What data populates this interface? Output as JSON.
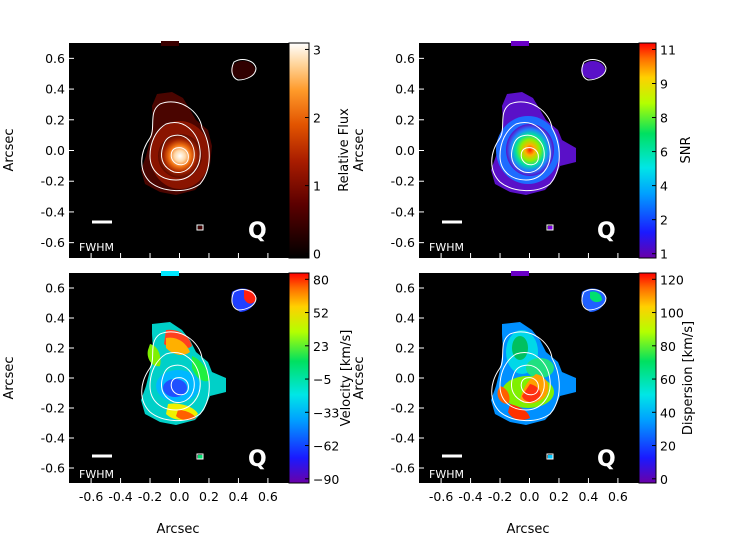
{
  "chart_data": [
    {
      "type": "heatmap",
      "quantity": "flux",
      "cbar_label": "Relative Flux",
      "cbar_ticks": [
        "0",
        "1",
        "2",
        "3"
      ],
      "cbar_range": [
        0,
        3
      ],
      "ylabel": "Arcsec",
      "xlabel": "",
      "beam_label": "FWHM",
      "object_label": "Q",
      "colormap": "hot",
      "xlim": [
        -0.75,
        0.75
      ],
      "ylim": [
        -0.7,
        0.7
      ],
      "yticks": [
        "0.6",
        "0.4",
        "0.2",
        "0.0",
        "-0.2",
        "-0.4",
        "-0.6"
      ],
      "xticks": []
    },
    {
      "type": "heatmap",
      "quantity": "snr",
      "cbar_label": "SNR",
      "cbar_ticks": [
        "1",
        "2",
        "4",
        "6",
        "8",
        "9",
        "11"
      ],
      "cbar_range": [
        1,
        11
      ],
      "ylabel": "Arcsec",
      "xlabel": "",
      "beam_label": "FWHM",
      "object_label": "Q",
      "colormap": "rainbow",
      "xlim": [
        -0.75,
        0.75
      ],
      "ylim": [
        -0.7,
        0.7
      ],
      "yticks": [
        "0.6",
        "0.4",
        "0.2",
        "0.0",
        "-0.2",
        "-0.4",
        "-0.6"
      ],
      "xticks": []
    },
    {
      "type": "heatmap",
      "quantity": "velocity",
      "cbar_label": "Velocity [km/s]",
      "cbar_ticks": [
        "80",
        "52",
        "23",
        "−5",
        "−33",
        "−62",
        "−90"
      ],
      "cbar_range": [
        -90,
        80
      ],
      "ylabel": "Arcsec",
      "xlabel": "Arcsec",
      "beam_label": "FWHM",
      "object_label": "Q",
      "colormap": "rainbow",
      "xlim": [
        -0.75,
        0.75
      ],
      "ylim": [
        -0.7,
        0.7
      ],
      "yticks": [
        "0.6",
        "0.4",
        "0.2",
        "0.0",
        "-0.2",
        "-0.4",
        "-0.6"
      ],
      "xticks": [
        "-0.6",
        "-0.4",
        "-0.2",
        "0.0",
        "0.2",
        "0.4",
        "0.6"
      ]
    },
    {
      "type": "heatmap",
      "quantity": "dispersion",
      "cbar_label": "Dispersion [km/s]",
      "cbar_ticks": [
        "0",
        "20",
        "40",
        "60",
        "80",
        "100",
        "120"
      ],
      "cbar_range": [
        0,
        120
      ],
      "ylabel": "Arcsec",
      "xlabel": "Arcsec",
      "beam_label": "FWHM",
      "object_label": "Q",
      "colormap": "rainbow",
      "xlim": [
        -0.75,
        0.75
      ],
      "ylim": [
        -0.7,
        0.7
      ],
      "yticks": [
        "0.6",
        "0.4",
        "0.2",
        "0.0",
        "-0.2",
        "-0.4",
        "-0.6"
      ],
      "xticks": [
        "-0.6",
        "-0.4",
        "-0.2",
        "0.0",
        "0.2",
        "0.4",
        "0.6"
      ]
    }
  ]
}
